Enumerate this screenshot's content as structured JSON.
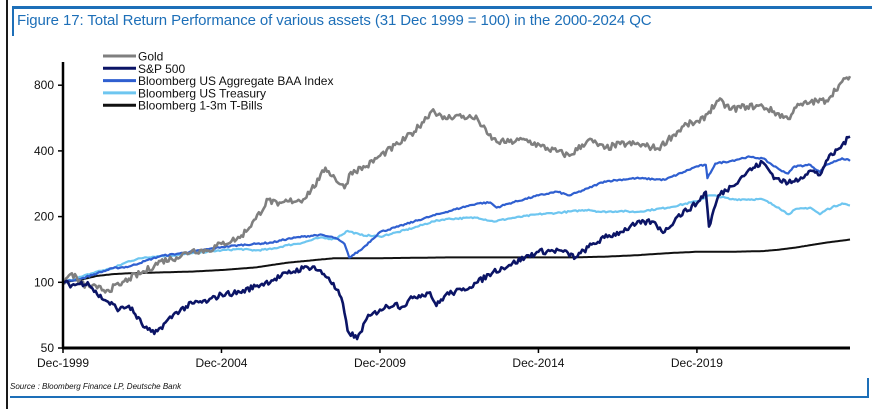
{
  "chart_data": {
    "type": "line",
    "title": "Figure 17: Total Return Performance of various assets (31 Dec 1999 = 100) in the 2000-2024 QC",
    "source": "Source : Bloomberg Finance LP, Deutsche Bank",
    "xlabel": "",
    "ylabel": "",
    "y_scale": "log",
    "ylim": [
      50,
      950
    ],
    "xlim": [
      1999.92,
      2024.75
    ],
    "y_ticks": [
      {
        "value": 50,
        "label": "50"
      },
      {
        "value": 100,
        "label": "100"
      },
      {
        "value": 200,
        "label": "200"
      },
      {
        "value": 400,
        "label": "400"
      },
      {
        "value": 800,
        "label": "800"
      }
    ],
    "x_ticks": [
      {
        "value": 1999.92,
        "label": "Dec-1999"
      },
      {
        "value": 2004.92,
        "label": "Dec-2004"
      },
      {
        "value": 2009.92,
        "label": "Dec-2009"
      },
      {
        "value": 2014.92,
        "label": "Dec-2014"
      },
      {
        "value": 2019.92,
        "label": "Dec-2019"
      }
    ],
    "grid": false,
    "legend_position": "top-left",
    "series": [
      {
        "name": "Gold",
        "color": "#7f7f7f",
        "x": [
          1999.92,
          2000.2,
          2000.5,
          2001.0,
          2001.3,
          2001.7,
          2002.0,
          2002.5,
          2003.0,
          2003.5,
          2004.0,
          2004.5,
          2004.92,
          2005.5,
          2006.0,
          2006.4,
          2006.7,
          2007.0,
          2007.5,
          2008.0,
          2008.2,
          2008.8,
          2009.0,
          2009.5,
          2009.92,
          2010.5,
          2011.0,
          2011.6,
          2011.9,
          2012.3,
          2012.7,
          2013.0,
          2013.3,
          2013.6,
          2014.0,
          2014.5,
          2015.0,
          2015.9,
          2016.5,
          2017.0,
          2017.5,
          2018.0,
          2018.7,
          2019.0,
          2019.6,
          2020.0,
          2020.6,
          2021.0,
          2021.5,
          2022.0,
          2022.8,
          2023.0,
          2023.5,
          2024.0,
          2024.4,
          2024.75
        ],
        "values": [
          100,
          110,
          98,
          94,
          92,
          97,
          104,
          112,
          125,
          130,
          140,
          140,
          150,
          160,
          195,
          240,
          225,
          235,
          240,
          295,
          335,
          270,
          320,
          340,
          380,
          430,
          490,
          620,
          560,
          580,
          570,
          560,
          480,
          440,
          440,
          450,
          420,
          380,
          450,
          410,
          430,
          430,
          410,
          450,
          530,
          540,
          680,
          620,
          640,
          640,
          560,
          630,
          670,
          680,
          800,
          880
        ]
      },
      {
        "name": "S&P 500",
        "color": "#0b1466",
        "x": [
          1999.92,
          2000.2,
          2000.7,
          2001.0,
          2001.3,
          2001.7,
          2002.0,
          2002.5,
          2002.8,
          2003.0,
          2003.5,
          2004.0,
          2004.5,
          2004.92,
          2005.5,
          2006.0,
          2006.5,
          2007.0,
          2007.5,
          2007.8,
          2008.3,
          2008.7,
          2008.9,
          2009.2,
          2009.5,
          2009.92,
          2010.4,
          2010.6,
          2011.0,
          2011.5,
          2011.7,
          2012.0,
          2012.5,
          2013.0,
          2013.5,
          2014.0,
          2014.5,
          2014.92,
          2015.6,
          2016.1,
          2016.5,
          2017.0,
          2017.5,
          2018.0,
          2018.5,
          2018.9,
          2019.3,
          2019.92,
          2020.2,
          2020.3,
          2020.6,
          2021.0,
          2021.5,
          2021.99,
          2022.4,
          2022.8,
          2023.0,
          2023.5,
          2023.8,
          2024.0,
          2024.4,
          2024.75
        ],
        "values": [
          100,
          97,
          100,
          88,
          82,
          75,
          78,
          62,
          58,
          62,
          73,
          80,
          82,
          88,
          90,
          96,
          102,
          110,
          116,
          118,
          105,
          85,
          60,
          55,
          68,
          75,
          80,
          77,
          86,
          90,
          78,
          88,
          92,
          100,
          112,
          120,
          130,
          138,
          140,
          130,
          145,
          160,
          170,
          185,
          190,
          170,
          200,
          230,
          260,
          180,
          250,
          275,
          320,
          355,
          300,
          285,
          290,
          325,
          310,
          360,
          410,
          465
        ]
      },
      {
        "name": "Bloomberg US Aggregate BAA Index",
        "color": "#2f5fd0",
        "x": [
          1999.92,
          2000.5,
          2001.0,
          2001.5,
          2002.0,
          2002.5,
          2003.0,
          2003.5,
          2004.0,
          2004.92,
          2005.5,
          2006.0,
          2006.5,
          2007.0,
          2007.5,
          2008.0,
          2008.5,
          2008.8,
          2008.95,
          2009.3,
          2009.92,
          2010.5,
          2011.0,
          2011.5,
          2012.0,
          2012.5,
          2013.0,
          2013.4,
          2013.6,
          2014.0,
          2014.92,
          2015.5,
          2015.9,
          2016.5,
          2017.0,
          2018.0,
          2018.9,
          2019.5,
          2019.92,
          2020.2,
          2020.25,
          2020.5,
          2021.0,
          2021.5,
          2021.99,
          2022.5,
          2022.8,
          2023.0,
          2023.5,
          2023.8,
          2024.0,
          2024.5,
          2024.75
        ],
        "values": [
          100,
          104,
          110,
          116,
          118,
          125,
          132,
          135,
          138,
          145,
          148,
          150,
          152,
          158,
          162,
          165,
          160,
          150,
          130,
          140,
          170,
          180,
          190,
          200,
          210,
          220,
          230,
          232,
          220,
          230,
          250,
          260,
          250,
          270,
          290,
          300,
          295,
          320,
          340,
          345,
          300,
          350,
          360,
          375,
          370,
          330,
          315,
          340,
          345,
          320,
          345,
          370,
          360
        ]
      },
      {
        "name": "Bloomberg US Treasury",
        "color": "#6ec6f0",
        "x": [
          1999.92,
          2000.5,
          2001.0,
          2001.5,
          2002.0,
          2002.5,
          2003.0,
          2003.5,
          2004.0,
          2004.92,
          2005.5,
          2006.0,
          2006.5,
          2007.0,
          2007.5,
          2008.0,
          2008.5,
          2008.9,
          2009.3,
          2009.92,
          2010.5,
          2011.0,
          2011.6,
          2012.0,
          2013.0,
          2013.5,
          2014.0,
          2014.92,
          2015.5,
          2016.5,
          2016.9,
          2017.5,
          2018.0,
          2019.0,
          2019.92,
          2020.3,
          2020.6,
          2021.0,
          2021.99,
          2022.5,
          2022.8,
          2023.0,
          2023.5,
          2023.8,
          2024.0,
          2024.5,
          2024.75
        ],
        "values": [
          100,
          106,
          112,
          116,
          125,
          130,
          132,
          133,
          136,
          140,
          142,
          140,
          142,
          148,
          152,
          160,
          158,
          172,
          165,
          162,
          170,
          178,
          190,
          195,
          198,
          190,
          196,
          205,
          208,
          215,
          210,
          212,
          210,
          220,
          235,
          250,
          248,
          240,
          240,
          220,
          205,
          215,
          220,
          205,
          215,
          230,
          225
        ]
      },
      {
        "name": "Bloomberg 1-3m T-Bills",
        "color": "#111111",
        "x": [
          1999.92,
          2000.5,
          2001.0,
          2001.5,
          2002.0,
          2003.0,
          2004.0,
          2005.0,
          2006.0,
          2007.0,
          2008.0,
          2008.5,
          2009.0,
          2010.0,
          2012.0,
          2014.0,
          2015.9,
          2017.0,
          2018.0,
          2019.0,
          2019.92,
          2021.0,
          2022.0,
          2022.5,
          2023.0,
          2023.5,
          2024.0,
          2024.75
        ],
        "values": [
          100,
          103,
          107,
          109,
          110,
          111,
          112,
          114,
          117,
          123,
          127,
          129,
          129,
          129,
          130,
          130,
          130,
          131,
          133,
          136,
          138,
          138,
          139,
          141,
          144,
          148,
          152,
          157
        ]
      }
    ]
  }
}
